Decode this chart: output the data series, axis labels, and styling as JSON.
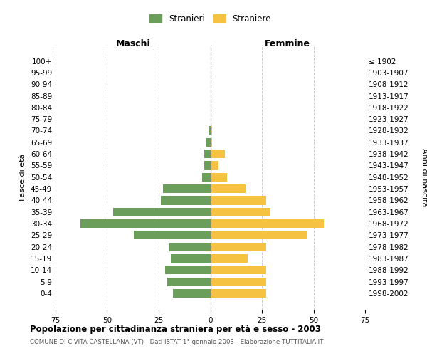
{
  "age_groups": [
    "0-4",
    "5-9",
    "10-14",
    "15-19",
    "20-24",
    "25-29",
    "30-34",
    "35-39",
    "40-44",
    "45-49",
    "50-54",
    "55-59",
    "60-64",
    "65-69",
    "70-74",
    "75-79",
    "80-84",
    "85-89",
    "90-94",
    "95-99",
    "100+"
  ],
  "birth_years": [
    "1998-2002",
    "1993-1997",
    "1988-1992",
    "1983-1987",
    "1978-1982",
    "1973-1977",
    "1968-1972",
    "1963-1967",
    "1958-1962",
    "1953-1957",
    "1948-1952",
    "1943-1947",
    "1938-1942",
    "1933-1937",
    "1928-1932",
    "1923-1927",
    "1918-1922",
    "1913-1917",
    "1908-1912",
    "1903-1907",
    "≤ 1902"
  ],
  "maschi": [
    18,
    21,
    22,
    19,
    20,
    37,
    63,
    47,
    24,
    23,
    4,
    3,
    3,
    2,
    1,
    0,
    0,
    0,
    0,
    0,
    0
  ],
  "femmine": [
    27,
    27,
    27,
    18,
    27,
    47,
    55,
    29,
    27,
    17,
    8,
    4,
    7,
    1,
    1,
    0,
    0,
    0,
    0,
    0,
    0
  ],
  "color_maschi": "#6a9e5a",
  "color_femmine": "#f5c242",
  "title": "Popolazione per cittadinanza straniera per età e sesso - 2003",
  "subtitle": "COMUNE DI CIVITA CASTELLANA (VT) - Dati ISTAT 1° gennaio 2003 - Elaborazione TUTTITALIA.IT",
  "legend_maschi": "Stranieri",
  "legend_femmine": "Straniere",
  "xlabel_left": "Maschi",
  "xlabel_right": "Femmine",
  "ylabel_left": "Fasce di età",
  "ylabel_right": "Anni di nascita",
  "xlim": 75,
  "bg_color": "#ffffff",
  "grid_color": "#cccccc",
  "bar_height": 0.75
}
